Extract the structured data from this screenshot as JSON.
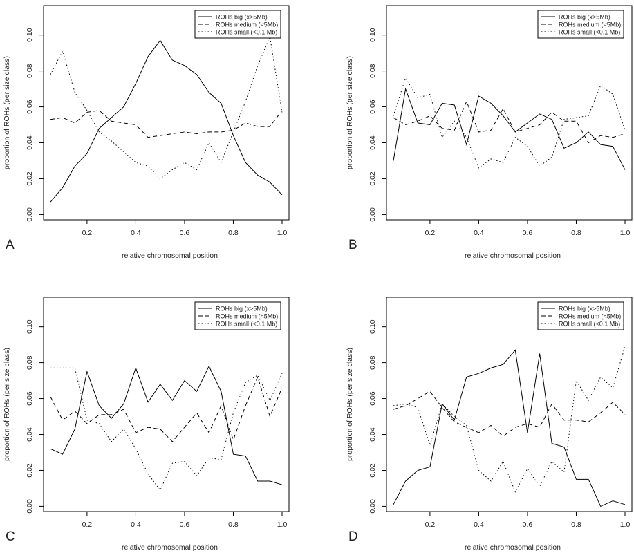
{
  "chart_data": [
    {
      "panel": "A",
      "type": "line",
      "xlabel": "relative chromosomal position",
      "ylabel": "proportion of ROHs (per size class)",
      "xlim": [
        0.05,
        1.0
      ],
      "ylim": [
        0.0,
        0.1
      ],
      "xticks": [
        "0.2",
        "0.4",
        "0.6",
        "0.8",
        "1.0"
      ],
      "yticks": [
        "0.00",
        "0.02",
        "0.04",
        "0.06",
        "0.08",
        "0.10"
      ],
      "legend_position": "top-right",
      "x": [
        0.05,
        0.1,
        0.15,
        0.2,
        0.25,
        0.3,
        0.35,
        0.4,
        0.45,
        0.5,
        0.55,
        0.6,
        0.65,
        0.7,
        0.75,
        0.8,
        0.85,
        0.9,
        0.95,
        1.0
      ],
      "series": [
        {
          "name": "ROHs big (x>5Mb)",
          "style": "solid",
          "values": [
            0.007,
            0.015,
            0.027,
            0.034,
            0.048,
            0.054,
            0.06,
            0.073,
            0.088,
            0.097,
            0.086,
            0.083,
            0.078,
            0.068,
            0.062,
            0.044,
            0.029,
            0.022,
            0.018,
            0.011
          ]
        },
        {
          "name": "ROHs medium (<5Mb)",
          "style": "dashed",
          "values": [
            0.053,
            0.054,
            0.051,
            0.057,
            0.058,
            0.052,
            0.051,
            0.05,
            0.043,
            0.044,
            0.045,
            0.046,
            0.045,
            0.046,
            0.046,
            0.047,
            0.051,
            0.049,
            0.049,
            0.058
          ]
        },
        {
          "name": "ROHs small (<0.1 Mb)",
          "style": "dotted",
          "values": [
            0.078,
            0.091,
            0.068,
            0.058,
            0.046,
            0.041,
            0.035,
            0.029,
            0.027,
            0.02,
            0.025,
            0.029,
            0.025,
            0.04,
            0.029,
            0.046,
            0.063,
            0.083,
            0.099,
            0.057
          ]
        }
      ]
    },
    {
      "panel": "B",
      "type": "line",
      "xlabel": "relative chromosomal position",
      "ylabel": "proportion of ROHs (per size class)",
      "xlim": [
        0.05,
        1.0
      ],
      "ylim": [
        0.0,
        0.1
      ],
      "xticks": [
        "0.2",
        "0.4",
        "0.6",
        "0.8",
        "1.0"
      ],
      "yticks": [
        "0.00",
        "0.02",
        "0.04",
        "0.06",
        "0.08",
        "0.10"
      ],
      "legend_position": "top-right",
      "x": [
        0.05,
        0.1,
        0.15,
        0.2,
        0.25,
        0.3,
        0.35,
        0.4,
        0.45,
        0.5,
        0.55,
        0.6,
        0.65,
        0.7,
        0.75,
        0.8,
        0.85,
        0.9,
        0.95,
        1.0
      ],
      "series": [
        {
          "name": "ROHs big (x>5Mb)",
          "style": "solid",
          "values": [
            0.03,
            0.07,
            0.051,
            0.05,
            0.062,
            0.061,
            0.039,
            0.066,
            0.062,
            0.055,
            0.046,
            0.051,
            0.056,
            0.053,
            0.037,
            0.04,
            0.046,
            0.039,
            0.038,
            0.025
          ]
        },
        {
          "name": "ROHs medium (<5Mb)",
          "style": "dashed",
          "values": [
            0.054,
            0.05,
            0.052,
            0.055,
            0.048,
            0.047,
            0.063,
            0.046,
            0.047,
            0.059,
            0.046,
            0.048,
            0.05,
            0.057,
            0.052,
            0.052,
            0.04,
            0.044,
            0.043,
            0.045
          ]
        },
        {
          "name": "ROHs small (<0.1 Mb)",
          "style": "dotted",
          "values": [
            0.055,
            0.076,
            0.065,
            0.067,
            0.043,
            0.052,
            0.043,
            0.026,
            0.031,
            0.029,
            0.043,
            0.038,
            0.027,
            0.032,
            0.053,
            0.054,
            0.055,
            0.072,
            0.067,
            0.047
          ]
        }
      ]
    },
    {
      "panel": "C",
      "type": "line",
      "xlabel": "relative chromosomal position",
      "ylabel": "proportion of ROHs (per size class)",
      "xlim": [
        0.05,
        1.0
      ],
      "ylim": [
        0.0,
        0.1
      ],
      "xticks": [
        "0.2",
        "0.4",
        "0.6",
        "0.8",
        "1.0"
      ],
      "yticks": [
        "0.00",
        "0.02",
        "0.04",
        "0.06",
        "0.08",
        "0.10"
      ],
      "legend_position": "top-right",
      "x": [
        0.05,
        0.1,
        0.15,
        0.2,
        0.25,
        0.3,
        0.35,
        0.4,
        0.45,
        0.5,
        0.55,
        0.6,
        0.65,
        0.7,
        0.75,
        0.8,
        0.85,
        0.9,
        0.95,
        1.0
      ],
      "series": [
        {
          "name": "ROHs big (x>5Mb)",
          "style": "solid",
          "values": [
            0.032,
            0.029,
            0.043,
            0.075,
            0.056,
            0.049,
            0.057,
            0.077,
            0.058,
            0.068,
            0.059,
            0.07,
            0.064,
            0.078,
            0.064,
            0.029,
            0.028,
            0.014,
            0.014,
            0.012
          ]
        },
        {
          "name": "ROHs medium (<5Mb)",
          "style": "dashed",
          "values": [
            0.061,
            0.048,
            0.053,
            0.046,
            0.051,
            0.051,
            0.054,
            0.041,
            0.044,
            0.043,
            0.036,
            0.044,
            0.052,
            0.041,
            0.056,
            0.037,
            0.056,
            0.072,
            0.05,
            0.066
          ]
        },
        {
          "name": "ROHs small (<0.1 Mb)",
          "style": "dotted",
          "values": [
            0.077,
            0.077,
            0.077,
            0.048,
            0.046,
            0.036,
            0.043,
            0.032,
            0.018,
            0.009,
            0.024,
            0.025,
            0.017,
            0.027,
            0.026,
            0.052,
            0.069,
            0.073,
            0.059,
            0.074
          ]
        }
      ]
    },
    {
      "panel": "D",
      "type": "line",
      "xlabel": "relative chromosomal position",
      "ylabel": "proportion of ROHs (per size class)",
      "xlim": [
        0.05,
        1.0
      ],
      "ylim": [
        0.0,
        0.1
      ],
      "xticks": [
        "0.2",
        "0.4",
        "0.6",
        "0.8",
        "1.0"
      ],
      "yticks": [
        "0.00",
        "0.02",
        "0.04",
        "0.06",
        "0.08",
        "0.10"
      ],
      "legend_position": "top-right",
      "x": [
        0.05,
        0.1,
        0.15,
        0.2,
        0.25,
        0.3,
        0.35,
        0.4,
        0.45,
        0.5,
        0.55,
        0.6,
        0.65,
        0.7,
        0.75,
        0.8,
        0.85,
        0.9,
        0.95,
        1.0
      ],
      "series": [
        {
          "name": "ROHs big (x>5Mb)",
          "style": "solid",
          "values": [
            0.001,
            0.014,
            0.02,
            0.022,
            0.057,
            0.048,
            0.072,
            0.074,
            0.077,
            0.079,
            0.087,
            0.041,
            0.085,
            0.035,
            0.033,
            0.015,
            0.015,
            0.0,
            0.003,
            0.001
          ]
        },
        {
          "name": "ROHs medium (<5Mb)",
          "style": "dashed",
          "values": [
            0.054,
            0.056,
            0.06,
            0.064,
            0.055,
            0.047,
            0.044,
            0.041,
            0.045,
            0.039,
            0.044,
            0.046,
            0.044,
            0.057,
            0.048,
            0.048,
            0.047,
            0.052,
            0.058,
            0.051
          ]
        },
        {
          "name": "ROHs small (<0.1 Mb)",
          "style": "dotted",
          "values": [
            0.056,
            0.057,
            0.055,
            0.034,
            0.057,
            0.05,
            0.045,
            0.02,
            0.014,
            0.025,
            0.008,
            0.021,
            0.011,
            0.025,
            0.019,
            0.07,
            0.059,
            0.072,
            0.066,
            0.089
          ]
        }
      ]
    }
  ]
}
